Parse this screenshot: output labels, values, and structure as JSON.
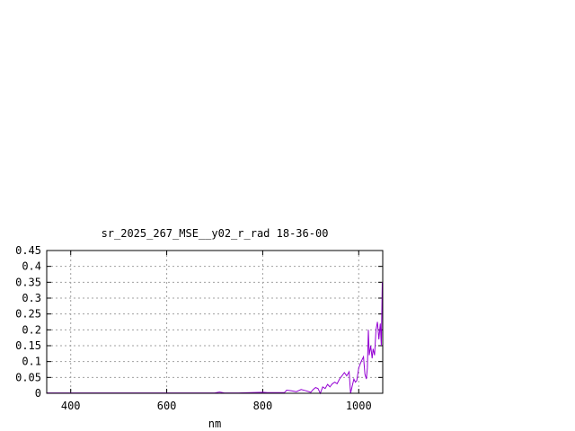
{
  "chart_data": {
    "type": "line",
    "title": "sr_2025_267_MSE__y02_r_rad 18-36-00",
    "xlabel": "nm",
    "ylabel": "",
    "xlim": [
      350,
      1050
    ],
    "ylim": [
      0,
      0.45
    ],
    "xticks": [
      400,
      600,
      800,
      1000
    ],
    "yticks": [
      0,
      0.05,
      0.1,
      0.15,
      0.2,
      0.25,
      0.3,
      0.35,
      0.4,
      0.45
    ],
    "ytick_labels": [
      "0",
      "0.05",
      "0.1",
      "0.15",
      "0.2",
      "0.25",
      "0.3",
      "0.35",
      "0.4",
      "0.45"
    ],
    "grid": true,
    "series_color": "#9400d3",
    "series": [
      {
        "x": [
          350,
          400,
          450,
          500,
          550,
          600,
          650,
          700,
          710,
          720,
          750,
          800,
          810,
          830,
          845,
          850,
          860,
          870,
          880,
          890,
          900,
          905,
          910,
          915,
          920,
          925,
          930,
          935,
          940,
          945,
          950,
          955,
          960,
          965,
          970,
          975,
          980,
          983,
          986,
          990,
          993,
          996,
          1000,
          1005,
          1010,
          1013,
          1016,
          1018,
          1020,
          1022,
          1025,
          1028,
          1030,
          1033,
          1036,
          1039,
          1042,
          1045,
          1047,
          1049
        ],
        "y": [
          0.001,
          0.001,
          0.001,
          0.001,
          0.001,
          0.001,
          0.001,
          0.001,
          0.004,
          0.001,
          0.001,
          0.003,
          0.002,
          0.002,
          0.002,
          0.01,
          0.008,
          0.005,
          0.012,
          0.008,
          0.003,
          0.012,
          0.018,
          0.015,
          0.0,
          0.02,
          0.015,
          0.028,
          0.02,
          0.03,
          0.035,
          0.03,
          0.045,
          0.055,
          0.065,
          0.055,
          0.068,
          0.0,
          0.02,
          0.045,
          0.035,
          0.04,
          0.08,
          0.1,
          0.115,
          0.06,
          0.045,
          0.08,
          0.2,
          0.12,
          0.15,
          0.11,
          0.14,
          0.12,
          0.2,
          0.225,
          0.17,
          0.22,
          0.15,
          0.35
        ]
      }
    ]
  }
}
